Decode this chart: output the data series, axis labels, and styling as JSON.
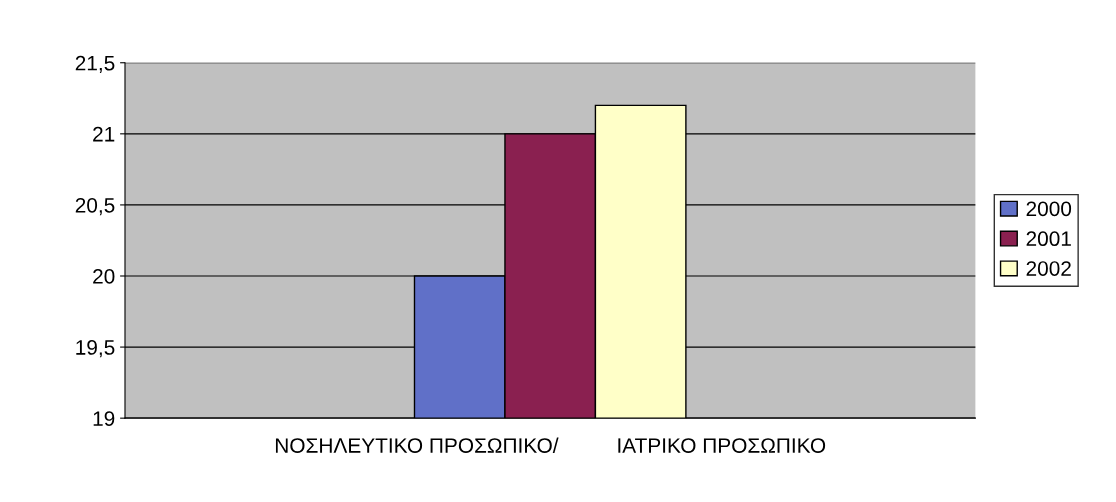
{
  "chart_data": {
    "type": "bar",
    "categories": [
      "ΝΟΣΗΛΕΥΤΙΚΟ ΠΡΟΣΩΠΙΚΟ/          ΙΑΤΡΙΚΟ ΠΡΟΣΩΠΙΚΟ"
    ],
    "series": [
      {
        "name": "2000",
        "color": "#6070c8",
        "values": [
          20
        ]
      },
      {
        "name": "2001",
        "color": "#8a2050",
        "values": [
          21
        ]
      },
      {
        "name": "2002",
        "color": "#ffffc8",
        "values": [
          21.2
        ]
      }
    ],
    "ylim": [
      19,
      21.5
    ],
    "yticks": [
      19,
      {
        "value": 19.5,
        "label": "19,5"
      },
      20,
      {
        "value": 20.5,
        "label": "20,5"
      },
      21,
      {
        "value": 21.5,
        "label": "21,5"
      }
    ],
    "grid": "y",
    "legend": "right"
  }
}
